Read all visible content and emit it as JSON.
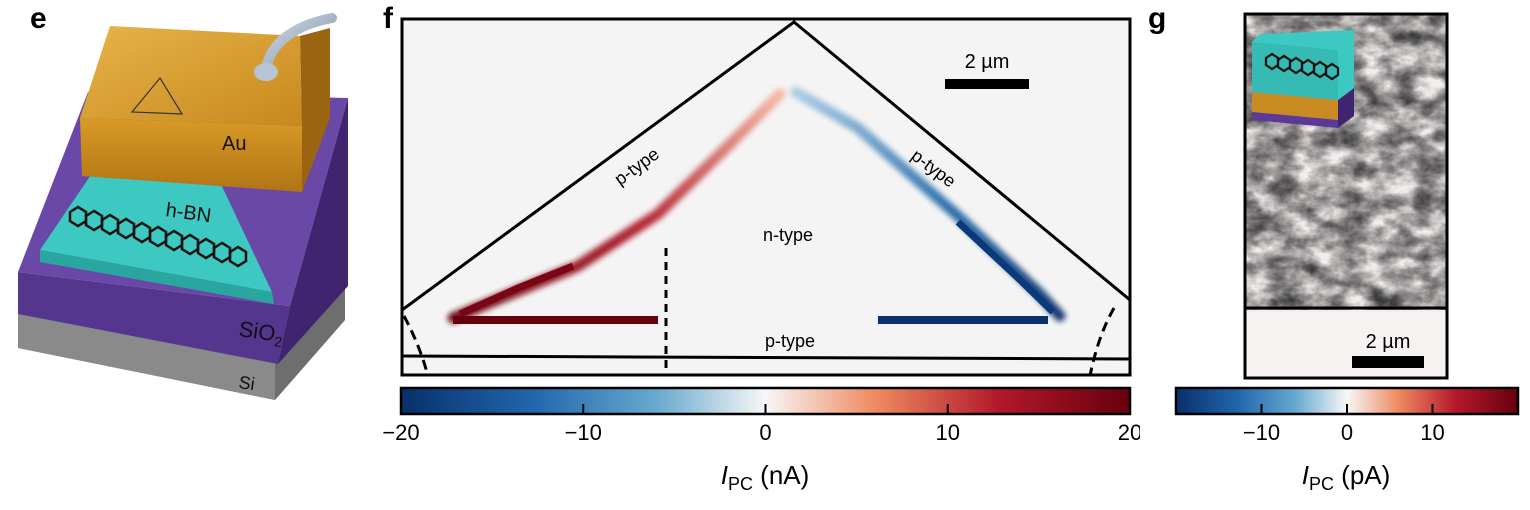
{
  "panels": {
    "e": {
      "letter": "e",
      "labels": {
        "au": "Au",
        "hbn": "h-BN",
        "sio2": "SiO",
        "sio2_sub": "2",
        "si": "Si"
      }
    },
    "f": {
      "letter": "f",
      "scalebar": "2 µm",
      "region_labels": {
        "p_left": "p-type",
        "p_right": "p-type",
        "n_center": "n-type",
        "p_bottom": "p-type"
      },
      "colorbar": {
        "min": -20,
        "max": 20,
        "ticks": [
          -20,
          -10,
          0,
          10,
          20
        ],
        "tick_labels": [
          "−20",
          "−10",
          "0",
          "10",
          "20"
        ],
        "label_symbol": "I",
        "label_sub": "PC",
        "label_unit": " (nA)"
      }
    },
    "g": {
      "letter": "g",
      "scalebar": "2 µm",
      "colorbar": {
        "min": -20,
        "max": 20,
        "ticks": [
          -10,
          0,
          10
        ],
        "tick_labels": [
          "−10",
          "0",
          "10"
        ],
        "label_symbol": "I",
        "label_sub": "PC",
        "label_unit": " (pA)"
      }
    }
  },
  "colors": {
    "negative": "#08306b",
    "neutral": "#f7f7f7",
    "positive": "#67000d",
    "gold": "#d39a2a",
    "purple": "#5a3a96",
    "hbn": "#3ec8c2",
    "silicon": "#8e8e8e"
  }
}
